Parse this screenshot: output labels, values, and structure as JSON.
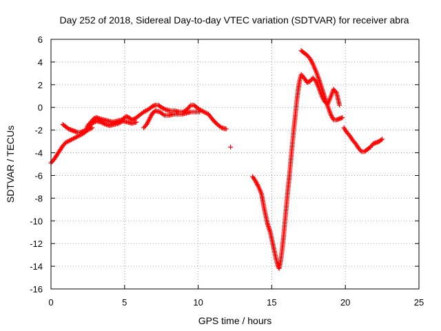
{
  "chart_data": {
    "type": "scatter",
    "title": "Day 252 of 2018, Sidereal Day-to-day VTEC variation (SDTVAR) for receiver abra",
    "xlabel": "GPS time / hours",
    "ylabel": "SDTVAR / TECUs",
    "xlim": [
      0,
      25
    ],
    "ylim": [
      -16,
      6
    ],
    "xticks": [
      0,
      5,
      10,
      15,
      20,
      25
    ],
    "yticks": [
      -16,
      -14,
      -12,
      -10,
      -8,
      -6,
      -4,
      -2,
      0,
      2,
      4,
      6
    ],
    "grid": true,
    "marker": "+",
    "color": "#ff0000",
    "series": [
      {
        "segments": [
          [
            [
              0.0,
              -4.9
            ],
            [
              0.2,
              -4.6
            ],
            [
              0.4,
              -4.2
            ],
            [
              0.6,
              -3.8
            ],
            [
              0.8,
              -3.4
            ],
            [
              1.0,
              -3.1
            ],
            [
              1.3,
              -2.9
            ],
            [
              1.6,
              -2.7
            ],
            [
              1.9,
              -2.5
            ],
            [
              2.2,
              -2.3
            ],
            [
              2.5,
              -2.0
            ],
            [
              2.8,
              -1.8
            ]
          ],
          [
            [
              0.8,
              -1.5
            ],
            [
              1.0,
              -1.7
            ],
            [
              1.2,
              -1.9
            ],
            [
              1.4,
              -2.0
            ],
            [
              1.6,
              -2.1
            ],
            [
              1.8,
              -2.2
            ],
            [
              2.0,
              -2.2
            ],
            [
              2.2,
              -2.1
            ],
            [
              2.4,
              -2.0
            ],
            [
              2.5,
              -1.6
            ],
            [
              2.7,
              -1.3
            ],
            [
              2.9,
              -1.0
            ],
            [
              3.1,
              -0.9
            ],
            [
              3.3,
              -1.0
            ],
            [
              3.6,
              -1.1
            ],
            [
              3.9,
              -1.2
            ],
            [
              4.2,
              -1.3
            ],
            [
              4.5,
              -1.2
            ],
            [
              4.8,
              -1.1
            ],
            [
              5.1,
              -0.8
            ],
            [
              5.3,
              -0.9
            ],
            [
              5.5,
              -1.1
            ],
            [
              5.7,
              -1.0
            ],
            [
              6.0,
              -0.7
            ],
            [
              6.3,
              -0.4
            ],
            [
              6.6,
              -0.2
            ],
            [
              6.9,
              0.1
            ],
            [
              7.1,
              0.2
            ],
            [
              7.3,
              0.2
            ],
            [
              7.5,
              0.0
            ],
            [
              7.8,
              -0.2
            ],
            [
              8.1,
              -0.3
            ],
            [
              8.4,
              -0.3
            ],
            [
              8.7,
              -0.4
            ],
            [
              9.0,
              -0.4
            ],
            [
              9.3,
              -0.1
            ],
            [
              9.5,
              0.2
            ],
            [
              9.7,
              0.2
            ],
            [
              9.9,
              0.0
            ],
            [
              10.1,
              -0.2
            ],
            [
              10.4,
              -0.4
            ],
            [
              10.7,
              -0.6
            ],
            [
              11.0,
              -1.1
            ],
            [
              11.3,
              -1.5
            ],
            [
              11.6,
              -1.8
            ],
            [
              11.9,
              -1.9
            ]
          ],
          [
            [
              2.6,
              -1.7
            ],
            [
              2.8,
              -1.4
            ],
            [
              3.1,
              -1.2
            ],
            [
              3.4,
              -1.3
            ],
            [
              3.7,
              -1.5
            ],
            [
              4.0,
              -1.6
            ],
            [
              4.3,
              -1.5
            ],
            [
              4.6,
              -1.4
            ],
            [
              4.9,
              -1.2
            ],
            [
              5.2,
              -1.3
            ],
            [
              5.5,
              -1.4
            ],
            [
              5.8,
              -1.3
            ]
          ],
          [
            [
              6.3,
              -1.8
            ],
            [
              6.5,
              -1.5
            ],
            [
              6.7,
              -1.0
            ],
            [
              6.9,
              -0.5
            ],
            [
              7.1,
              -0.3
            ],
            [
              7.4,
              -0.4
            ],
            [
              7.7,
              -0.7
            ],
            [
              8.0,
              -0.7
            ],
            [
              8.3,
              -0.6
            ],
            [
              8.6,
              -0.6
            ],
            [
              8.9,
              -0.6
            ],
            [
              9.2,
              -0.5
            ],
            [
              9.5,
              -0.4
            ],
            [
              9.8,
              -0.4
            ],
            [
              10.1,
              -0.4
            ]
          ],
          [
            [
              12.2,
              -3.5
            ]
          ],
          [
            [
              13.7,
              -6.1
            ],
            [
              13.9,
              -6.5
            ],
            [
              14.1,
              -7.0
            ],
            [
              14.3,
              -7.6
            ],
            [
              14.4,
              -8.3
            ],
            [
              14.5,
              -9.0
            ],
            [
              14.6,
              -9.6
            ],
            [
              14.7,
              -10.2
            ],
            [
              14.8,
              -10.6
            ],
            [
              14.9,
              -11.0
            ],
            [
              15.0,
              -11.6
            ],
            [
              15.1,
              -12.2
            ],
            [
              15.2,
              -12.8
            ],
            [
              15.3,
              -13.4
            ],
            [
              15.4,
              -13.9
            ],
            [
              15.5,
              -14.2
            ],
            [
              15.6,
              -13.6
            ],
            [
              15.7,
              -12.6
            ],
            [
              15.8,
              -11.4
            ],
            [
              15.9,
              -10.0
            ],
            [
              16.0,
              -8.6
            ],
            [
              16.1,
              -7.2
            ],
            [
              16.2,
              -6.0
            ],
            [
              16.3,
              -4.6
            ],
            [
              16.4,
              -3.2
            ],
            [
              16.5,
              -1.9
            ],
            [
              16.6,
              -0.7
            ],
            [
              16.7,
              0.6
            ],
            [
              16.8,
              1.6
            ],
            [
              16.9,
              2.4
            ],
            [
              17.0,
              2.9
            ],
            [
              17.2,
              2.6
            ],
            [
              17.4,
              2.2
            ],
            [
              17.6,
              2.3
            ],
            [
              17.8,
              2.6
            ],
            [
              18.0,
              2.3
            ],
            [
              18.2,
              1.7
            ],
            [
              18.4,
              1.0
            ],
            [
              18.6,
              0.5
            ],
            [
              18.8,
              0.3
            ],
            [
              19.0,
              0.9
            ],
            [
              19.2,
              1.6
            ],
            [
              19.4,
              1.3
            ],
            [
              19.6,
              0.2
            ]
          ],
          [
            [
              17.0,
              5.0
            ],
            [
              17.2,
              4.8
            ],
            [
              17.4,
              4.6
            ],
            [
              17.6,
              4.3
            ],
            [
              17.8,
              3.8
            ],
            [
              18.0,
              3.2
            ],
            [
              18.2,
              2.5
            ],
            [
              18.4,
              1.7
            ],
            [
              18.6,
              0.9
            ],
            [
              18.8,
              0.1
            ],
            [
              19.0,
              -0.6
            ],
            [
              19.2,
              -1.1
            ],
            [
              19.4,
              -1.1
            ],
            [
              19.6,
              -1.0
            ],
            [
              19.8,
              -0.9
            ]
          ],
          [
            [
              19.9,
              -1.8
            ],
            [
              20.1,
              -2.2
            ],
            [
              20.3,
              -2.5
            ],
            [
              20.5,
              -2.9
            ],
            [
              20.7,
              -3.2
            ],
            [
              20.9,
              -3.6
            ],
            [
              21.1,
              -3.9
            ],
            [
              21.3,
              -3.9
            ],
            [
              21.5,
              -3.7
            ],
            [
              21.7,
              -3.5
            ],
            [
              21.9,
              -3.2
            ],
            [
              22.1,
              -3.1
            ],
            [
              22.3,
              -3.0
            ],
            [
              22.5,
              -2.8
            ]
          ]
        ]
      }
    ]
  }
}
